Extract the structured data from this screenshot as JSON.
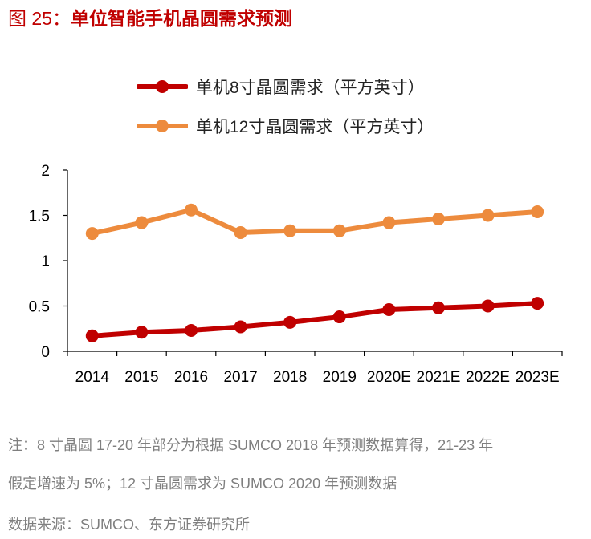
{
  "figure": {
    "label": "图 25：",
    "title": "单位智能手机晶圆需求预测"
  },
  "chart_data": {
    "type": "line",
    "categories": [
      "2014",
      "2015",
      "2016",
      "2017",
      "2018",
      "2019",
      "2020E",
      "2021E",
      "2022E",
      "2023E"
    ],
    "series": [
      {
        "name": "单机8寸晶圆需求（平方英寸）",
        "color": "#c00000",
        "values": [
          0.17,
          0.21,
          0.23,
          0.27,
          0.32,
          0.38,
          0.46,
          0.48,
          0.5,
          0.53
        ]
      },
      {
        "name": "单机12寸晶圆需求（平方英寸）",
        "color": "#ed8b3d",
        "values": [
          1.3,
          1.42,
          1.56,
          1.31,
          1.33,
          1.33,
          1.42,
          1.46,
          1.5,
          1.54
        ]
      }
    ],
    "ylim": [
      0,
      2
    ],
    "yticks": [
      "0",
      "0.5",
      "1",
      "1.5",
      "2"
    ],
    "title": "",
    "xlabel": "",
    "ylabel": "",
    "legend_position": "top",
    "grid": false
  },
  "notes": {
    "line1": "注：8 寸晶圆 17-20 年部分为根据 SUMCO 2018 年预测数据算得，21-23 年",
    "line2": "假定增速为 5%；12 寸晶圆需求为 SUMCO 2020 年预测数据",
    "source": "数据来源：SUMCO、东方证券研究所"
  }
}
